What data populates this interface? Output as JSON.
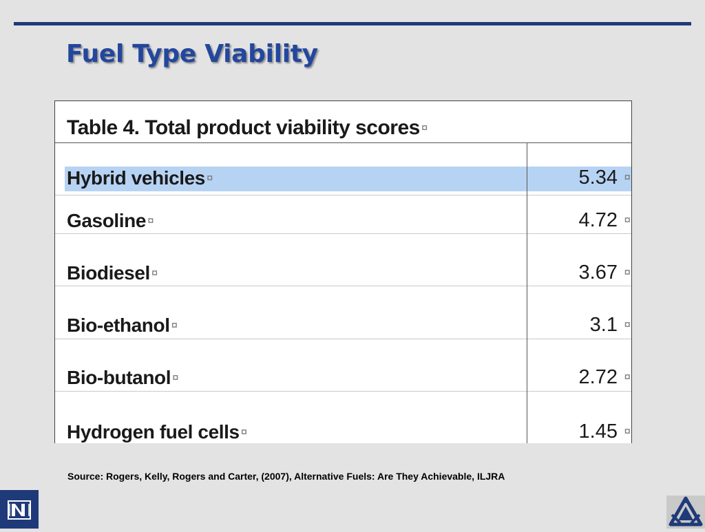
{
  "slide": {
    "title": "Fuel Type Viability",
    "source": "Source: Rogers, Kelly, Rogers and Carter, (2007), Alternative Fuels: Are They Achievable, ILJRA"
  },
  "table": {
    "caption": "Table 4. Total product viability scores",
    "mark": "¤",
    "rows": [
      {
        "label": "Hybrid vehicles",
        "value": "5.34"
      },
      {
        "label": "Gasoline",
        "value": "4.72"
      },
      {
        "label": "Biodiesel",
        "value": "3.67"
      },
      {
        "label": "Bio-ethanol",
        "value": "3.1"
      },
      {
        "label": "Bio-butanol",
        "value": "2.72"
      },
      {
        "label": "Hydrogen fuel cells",
        "value": "1.45"
      }
    ]
  },
  "colors": {
    "accent": "#1f3a78",
    "title": "#23479d",
    "highlight": "#b7d3f4",
    "background": "#e3e3e3"
  },
  "icons": {
    "left_logo": "university-n-logo",
    "right_logo": "triangle-emblem-logo"
  }
}
